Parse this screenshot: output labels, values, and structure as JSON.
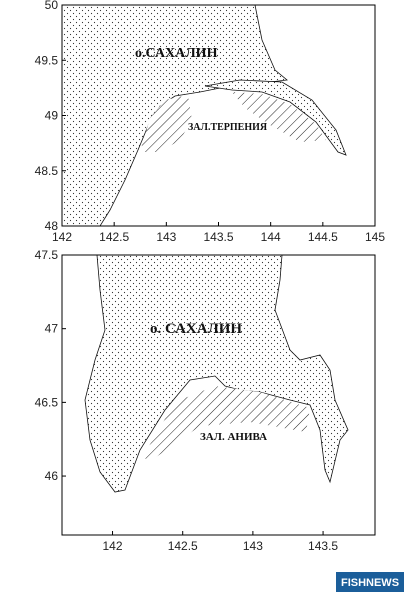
{
  "maps": [
    {
      "xlim": [
        142,
        145
      ],
      "ylim": [
        48,
        50
      ],
      "xticks": [
        142,
        142.5,
        143,
        143.5,
        144,
        144.5,
        145
      ],
      "yticks": [
        48,
        48.5,
        49,
        49.5,
        50
      ],
      "island_label": "о.САХАЛИН",
      "bay_label": "ЗАЛ.ТЕРПЕНИЯ"
    },
    {
      "xlim": [
        141.64,
        143.87
      ],
      "ylim": [
        45.6,
        47.5
      ],
      "xticks": [
        142,
        142.5,
        143,
        143.5
      ],
      "yticks": [
        46,
        46.5,
        47,
        47.5
      ],
      "island_label": "о. САХАЛИН",
      "bay_label": "ЗАЛ. АНИВА"
    }
  ],
  "watermark": "FISHNEWS"
}
